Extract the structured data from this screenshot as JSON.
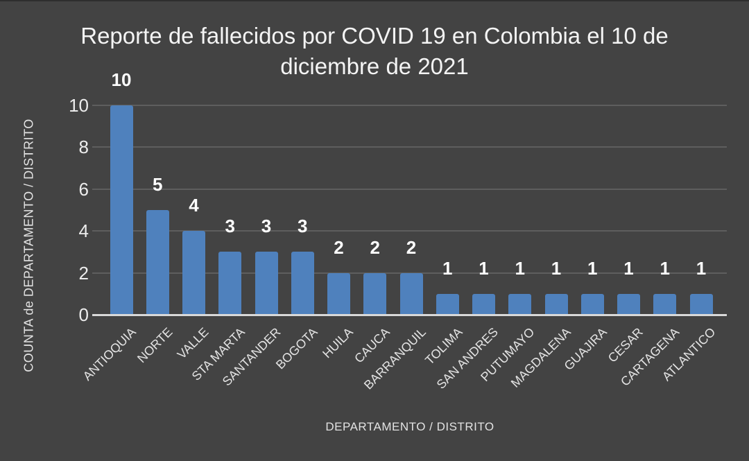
{
  "window": {
    "background": "#434343"
  },
  "chart_data": {
    "type": "bar",
    "title": "Reporte de fallecidos por COVID 19 en Colombia el 10 de diciembre de 2021",
    "title_lines": [
      "Reporte de fallecidos por COVID 19 en Colombia el 10 de",
      "diciembre de 2021"
    ],
    "xlabel": "DEPARTAMENTO / DISTRITO",
    "ylabel": "COUNTA de DEPARTAMENTO / DISTRITO",
    "categories": [
      "ANTIOQUIA",
      "NORTE",
      "VALLE",
      "STA MARTA",
      "SANTANDER",
      "BOGOTA",
      "HUILA",
      "CAUCA",
      "BARRANQUIL",
      "TOLIMA",
      "SAN ANDRES",
      "PUTUMAYO",
      "MAGDALENA",
      "GUAJIRA",
      "CESAR",
      "CARTAGENA",
      "ATLANTICO"
    ],
    "values": [
      10,
      5,
      4,
      3,
      3,
      3,
      2,
      2,
      2,
      1,
      1,
      1,
      1,
      1,
      1,
      1,
      1
    ],
    "data_labels_visible": true,
    "y_ticks": [
      0,
      2,
      4,
      6,
      8,
      10
    ],
    "ylim": [
      0,
      10
    ],
    "grid": true,
    "legend_position": "none",
    "colors": {
      "bar": "#4f81bd",
      "background": "#434343",
      "gridline": "#5e5e5e",
      "axis_line": "#d9d9d9",
      "title_text": "#f4f4f4",
      "tick_text": "#ededed",
      "data_label_text": "#ffffff",
      "axis_title_text": "#e3e3e3",
      "category_text": "#e3e3e3"
    }
  }
}
